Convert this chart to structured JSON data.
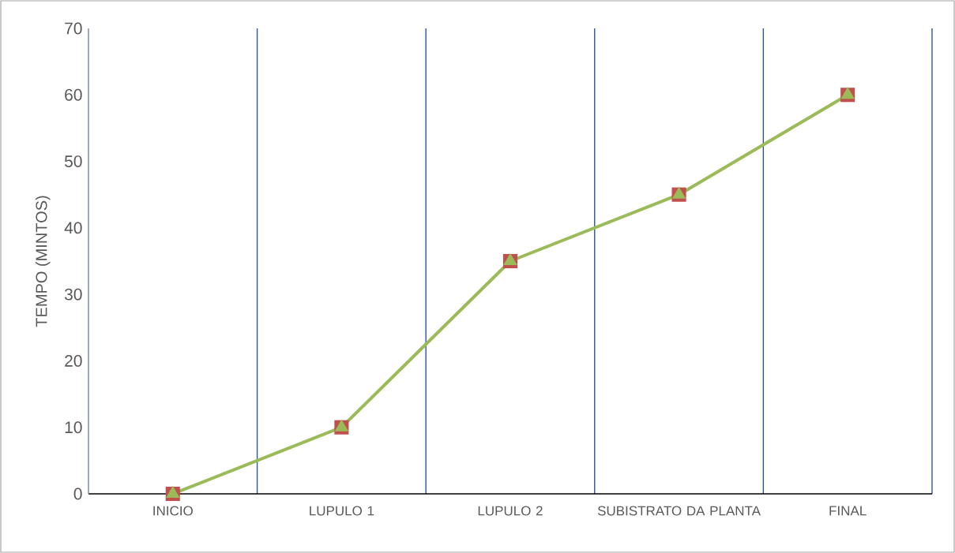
{
  "chart_data": {
    "type": "line",
    "ylabel": "TEMPO (MINTOS)",
    "categories": [
      "INICIO",
      "LUPULO 1",
      "LUPULO 2",
      "SUBISTRATO DA PLANTA",
      "FINAL"
    ],
    "series": [
      {
        "type": "scatter",
        "color": "#c0504d",
        "marker": "square",
        "values": [
          0,
          10,
          35,
          45,
          60
        ]
      },
      {
        "type": "line",
        "color": "#9bbb59",
        "marker": "triangle",
        "values": [
          0,
          10,
          35,
          45,
          60
        ]
      }
    ],
    "ylim": [
      0,
      70
    ],
    "yticks": [
      0,
      10,
      20,
      30,
      40,
      50,
      60,
      70
    ],
    "grid": "x"
  }
}
